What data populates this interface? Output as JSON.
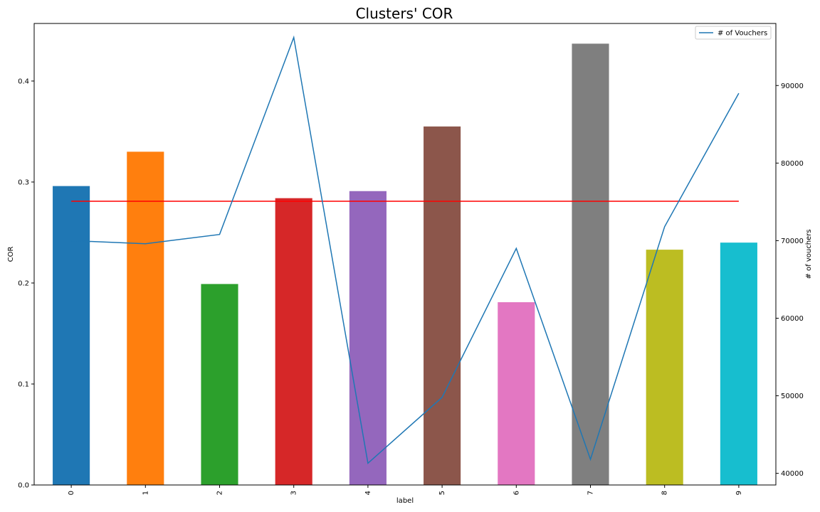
{
  "chart_data": {
    "type": "bar",
    "title": "Clusters' COR",
    "xlabel": "label",
    "ylabel": "COR",
    "y2label": "# of vouchers",
    "categories": [
      "0",
      "1",
      "2",
      "3",
      "4",
      "5",
      "6",
      "7",
      "8",
      "9"
    ],
    "bar_values": [
      0.296,
      0.33,
      0.199,
      0.284,
      0.291,
      0.355,
      0.181,
      0.437,
      0.233,
      0.24
    ],
    "bar_colors": [
      "#1f77b4",
      "#ff7f0e",
      "#2ca02c",
      "#d62728",
      "#9467bd",
      "#8c564b",
      "#e377c2",
      "#7f7f7f",
      "#bcbd22",
      "#17becf"
    ],
    "ylim": [
      0,
      0.457
    ],
    "yticks": [
      0.0,
      0.1,
      0.2,
      0.3,
      0.4
    ],
    "ytick_labels": [
      "0.0",
      "0.1",
      "0.2",
      "0.3",
      "0.4"
    ],
    "reference_line": {
      "value": 0.281,
      "color": "#ff0000"
    },
    "series": [
      {
        "name": "# of Vouchers",
        "axis": "right",
        "color": "#1f77b4",
        "values": [
          70000,
          69600,
          70800,
          96200,
          41300,
          49800,
          69000,
          41800,
          71800,
          89000
        ]
      }
    ],
    "y2lim": [
      38500,
      98000
    ],
    "y2ticks": [
      40000,
      50000,
      60000,
      70000,
      80000,
      90000
    ],
    "y2tick_labels": [
      "40000",
      "50000",
      "60000",
      "70000",
      "80000",
      "90000"
    ],
    "legend_position": "top-right",
    "grid": false
  }
}
